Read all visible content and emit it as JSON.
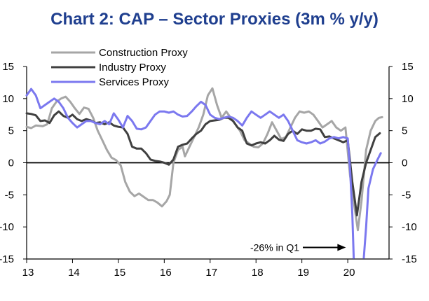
{
  "chart_data": {
    "type": "line",
    "title": "Chart 2: CAP – Sector Proxies (3m % y/y)",
    "xlabel": "",
    "ylabel": "",
    "xlim": [
      2013.0,
      2020.9
    ],
    "ylim": [
      -15,
      15
    ],
    "yticks": [
      "15",
      "10",
      "5",
      "0",
      "-5",
      "-10",
      "-15"
    ],
    "yticks_right": [
      "15",
      "10",
      "5",
      "0",
      "-5",
      "-10",
      "-15"
    ],
    "ytick_values": [
      15,
      10,
      5,
      0,
      -5,
      -10,
      -15
    ],
    "xticks": [
      "13",
      "14",
      "15",
      "16",
      "17",
      "18",
      "19",
      "20"
    ],
    "xtick_values": [
      2013,
      2014,
      2015,
      2016,
      2017,
      2018,
      2019,
      2020
    ],
    "legend_position": "top-left",
    "annotation": {
      "text": "-26% in Q1",
      "target": [
        2020.05,
        -13.2
      ]
    },
    "series": [
      {
        "name": "Construction Proxy",
        "color": "#a6a6a6",
        "points": [
          [
            2013.0,
            5.6
          ],
          [
            2013.1,
            5.4
          ],
          [
            2013.2,
            5.8
          ],
          [
            2013.35,
            5.7
          ],
          [
            2013.45,
            6.0
          ],
          [
            2013.55,
            8.5
          ],
          [
            2013.65,
            9.5
          ],
          [
            2013.75,
            10.0
          ],
          [
            2013.85,
            10.3
          ],
          [
            2013.95,
            9.5
          ],
          [
            2014.05,
            8.5
          ],
          [
            2014.15,
            7.6
          ],
          [
            2014.25,
            8.6
          ],
          [
            2014.35,
            8.4
          ],
          [
            2014.45,
            7.0
          ],
          [
            2014.55,
            5.0
          ],
          [
            2014.65,
            3.5
          ],
          [
            2014.75,
            2.0
          ],
          [
            2014.85,
            0.8
          ],
          [
            2014.95,
            0.4
          ],
          [
            2015.05,
            -0.4
          ],
          [
            2015.15,
            -3.0
          ],
          [
            2015.25,
            -4.5
          ],
          [
            2015.35,
            -5.2
          ],
          [
            2015.45,
            -4.8
          ],
          [
            2015.55,
            -5.3
          ],
          [
            2015.65,
            -5.8
          ],
          [
            2015.75,
            -5.8
          ],
          [
            2015.85,
            -6.2
          ],
          [
            2015.95,
            -6.8
          ],
          [
            2016.05,
            -6.0
          ],
          [
            2016.12,
            -5.0
          ],
          [
            2016.2,
            0.0
          ],
          [
            2016.3,
            2.0
          ],
          [
            2016.4,
            2.5
          ],
          [
            2016.45,
            1.0
          ],
          [
            2016.55,
            2.5
          ],
          [
            2016.65,
            4.0
          ],
          [
            2016.75,
            5.5
          ],
          [
            2016.85,
            7.5
          ],
          [
            2016.95,
            10.5
          ],
          [
            2017.05,
            11.6
          ],
          [
            2017.15,
            9.0
          ],
          [
            2017.25,
            7.0
          ],
          [
            2017.35,
            8.0
          ],
          [
            2017.45,
            7.0
          ],
          [
            2017.55,
            6.0
          ],
          [
            2017.65,
            5.0
          ],
          [
            2017.75,
            3.5
          ],
          [
            2017.85,
            3.0
          ],
          [
            2017.95,
            2.5
          ],
          [
            2018.05,
            2.4
          ],
          [
            2018.15,
            3.0
          ],
          [
            2018.25,
            4.5
          ],
          [
            2018.35,
            6.3
          ],
          [
            2018.45,
            5.0
          ],
          [
            2018.55,
            3.7
          ],
          [
            2018.65,
            4.0
          ],
          [
            2018.75,
            5.5
          ],
          [
            2018.85,
            7.0
          ],
          [
            2018.95,
            8.0
          ],
          [
            2019.05,
            7.8
          ],
          [
            2019.15,
            8.0
          ],
          [
            2019.25,
            7.5
          ],
          [
            2019.35,
            6.5
          ],
          [
            2019.45,
            5.5
          ],
          [
            2019.55,
            6.0
          ],
          [
            2019.65,
            6.5
          ],
          [
            2019.75,
            5.5
          ],
          [
            2019.85,
            5.0
          ],
          [
            2019.95,
            5.5
          ],
          [
            2020.05,
            -2.0
          ],
          [
            2020.15,
            -7.0
          ],
          [
            2020.22,
            -10.5
          ],
          [
            2020.3,
            -6.0
          ],
          [
            2020.4,
            2.0
          ],
          [
            2020.5,
            5.0
          ],
          [
            2020.6,
            6.5
          ],
          [
            2020.68,
            7.0
          ],
          [
            2020.75,
            7.1
          ]
        ]
      },
      {
        "name": "Industry Proxy",
        "color": "#404040",
        "points": [
          [
            2013.0,
            7.7
          ],
          [
            2013.1,
            7.6
          ],
          [
            2013.2,
            7.4
          ],
          [
            2013.3,
            6.5
          ],
          [
            2013.4,
            6.6
          ],
          [
            2013.5,
            6.2
          ],
          [
            2013.6,
            7.4
          ],
          [
            2013.7,
            8.0
          ],
          [
            2013.8,
            7.3
          ],
          [
            2013.9,
            7.0
          ],
          [
            2014.0,
            7.5
          ],
          [
            2014.1,
            6.8
          ],
          [
            2014.2,
            6.5
          ],
          [
            2014.3,
            6.8
          ],
          [
            2014.4,
            6.6
          ],
          [
            2014.5,
            6.2
          ],
          [
            2014.6,
            6.3
          ],
          [
            2014.7,
            6.0
          ],
          [
            2014.8,
            6.3
          ],
          [
            2014.9,
            5.8
          ],
          [
            2015.0,
            5.6
          ],
          [
            2015.1,
            5.5
          ],
          [
            2015.2,
            4.5
          ],
          [
            2015.3,
            2.5
          ],
          [
            2015.4,
            2.2
          ],
          [
            2015.5,
            2.2
          ],
          [
            2015.6,
            1.5
          ],
          [
            2015.7,
            0.5
          ],
          [
            2015.8,
            0.3
          ],
          [
            2015.9,
            0.2
          ],
          [
            2016.0,
            0.0
          ],
          [
            2016.1,
            -0.3
          ],
          [
            2016.2,
            0.5
          ],
          [
            2016.3,
            2.5
          ],
          [
            2016.4,
            2.8
          ],
          [
            2016.5,
            3.0
          ],
          [
            2016.6,
            3.8
          ],
          [
            2016.7,
            4.5
          ],
          [
            2016.8,
            5.0
          ],
          [
            2016.9,
            6.0
          ],
          [
            2017.0,
            6.5
          ],
          [
            2017.1,
            6.6
          ],
          [
            2017.2,
            6.7
          ],
          [
            2017.3,
            7.0
          ],
          [
            2017.4,
            7.0
          ],
          [
            2017.5,
            6.5
          ],
          [
            2017.6,
            5.5
          ],
          [
            2017.7,
            5.0
          ],
          [
            2017.8,
            3.0
          ],
          [
            2017.9,
            2.7
          ],
          [
            2018.0,
            3.0
          ],
          [
            2018.1,
            3.2
          ],
          [
            2018.2,
            3.0
          ],
          [
            2018.3,
            3.5
          ],
          [
            2018.4,
            4.2
          ],
          [
            2018.5,
            3.6
          ],
          [
            2018.6,
            3.4
          ],
          [
            2018.7,
            4.5
          ],
          [
            2018.8,
            5.0
          ],
          [
            2018.9,
            4.5
          ],
          [
            2019.0,
            5.2
          ],
          [
            2019.1,
            5.0
          ],
          [
            2019.2,
            5.0
          ],
          [
            2019.3,
            5.3
          ],
          [
            2019.4,
            5.2
          ],
          [
            2019.5,
            4.0
          ],
          [
            2019.6,
            4.1
          ],
          [
            2019.7,
            3.8
          ],
          [
            2019.8,
            3.5
          ],
          [
            2019.9,
            3.2
          ],
          [
            2020.0,
            3.5
          ],
          [
            2020.1,
            -3.0
          ],
          [
            2020.2,
            -8.2
          ],
          [
            2020.3,
            -3.0
          ],
          [
            2020.4,
            0.0
          ],
          [
            2020.5,
            2.0
          ],
          [
            2020.6,
            4.0
          ],
          [
            2020.7,
            4.6
          ]
        ]
      },
      {
        "name": "Services Proxy",
        "color": "#7b78ef",
        "points": [
          [
            2013.0,
            10.5
          ],
          [
            2013.1,
            11.5
          ],
          [
            2013.2,
            10.5
          ],
          [
            2013.3,
            8.5
          ],
          [
            2013.4,
            9.0
          ],
          [
            2013.5,
            9.5
          ],
          [
            2013.6,
            10.0
          ],
          [
            2013.7,
            9.5
          ],
          [
            2013.8,
            8.5
          ],
          [
            2013.9,
            7.0
          ],
          [
            2014.0,
            6.2
          ],
          [
            2014.1,
            5.5
          ],
          [
            2014.2,
            6.0
          ],
          [
            2014.3,
            6.5
          ],
          [
            2014.4,
            6.5
          ],
          [
            2014.5,
            6.2
          ],
          [
            2014.6,
            6.0
          ],
          [
            2014.7,
            6.5
          ],
          [
            2014.8,
            6.0
          ],
          [
            2014.9,
            7.7
          ],
          [
            2015.0,
            6.7
          ],
          [
            2015.1,
            5.5
          ],
          [
            2015.2,
            7.3
          ],
          [
            2015.3,
            6.5
          ],
          [
            2015.4,
            5.3
          ],
          [
            2015.5,
            5.2
          ],
          [
            2015.6,
            5.5
          ],
          [
            2015.7,
            6.5
          ],
          [
            2015.8,
            7.5
          ],
          [
            2015.9,
            8.0
          ],
          [
            2016.0,
            8.0
          ],
          [
            2016.1,
            7.8
          ],
          [
            2016.2,
            8.0
          ],
          [
            2016.3,
            7.5
          ],
          [
            2016.4,
            7.2
          ],
          [
            2016.5,
            7.3
          ],
          [
            2016.6,
            8.0
          ],
          [
            2016.7,
            8.8
          ],
          [
            2016.8,
            9.5
          ],
          [
            2016.9,
            9.0
          ],
          [
            2017.0,
            7.5
          ],
          [
            2017.1,
            7.0
          ],
          [
            2017.2,
            6.8
          ],
          [
            2017.3,
            7.0
          ],
          [
            2017.4,
            7.2
          ],
          [
            2017.5,
            7.0
          ],
          [
            2017.6,
            6.5
          ],
          [
            2017.7,
            5.8
          ],
          [
            2017.8,
            7.0
          ],
          [
            2017.9,
            8.0
          ],
          [
            2018.0,
            7.5
          ],
          [
            2018.1,
            7.0
          ],
          [
            2018.2,
            7.5
          ],
          [
            2018.3,
            8.0
          ],
          [
            2018.4,
            7.5
          ],
          [
            2018.5,
            7.0
          ],
          [
            2018.6,
            7.5
          ],
          [
            2018.7,
            6.5
          ],
          [
            2018.8,
            5.0
          ],
          [
            2018.9,
            3.5
          ],
          [
            2019.0,
            3.2
          ],
          [
            2019.1,
            3.0
          ],
          [
            2019.2,
            3.2
          ],
          [
            2019.3,
            3.5
          ],
          [
            2019.4,
            3.0
          ],
          [
            2019.5,
            3.3
          ],
          [
            2019.6,
            3.8
          ],
          [
            2019.7,
            4.0
          ],
          [
            2019.8,
            3.8
          ],
          [
            2019.9,
            4.0
          ],
          [
            2020.0,
            3.8
          ],
          [
            2020.05,
            -1.0
          ],
          [
            2020.1,
            -8.0
          ],
          [
            2020.13,
            -14.8
          ]
        ],
        "points_recovery": [
          [
            2020.35,
            -14.8
          ],
          [
            2020.4,
            -10.0
          ],
          [
            2020.45,
            -4.0
          ],
          [
            2020.55,
            -1.0
          ],
          [
            2020.65,
            0.5
          ],
          [
            2020.72,
            1.5
          ]
        ]
      }
    ]
  }
}
